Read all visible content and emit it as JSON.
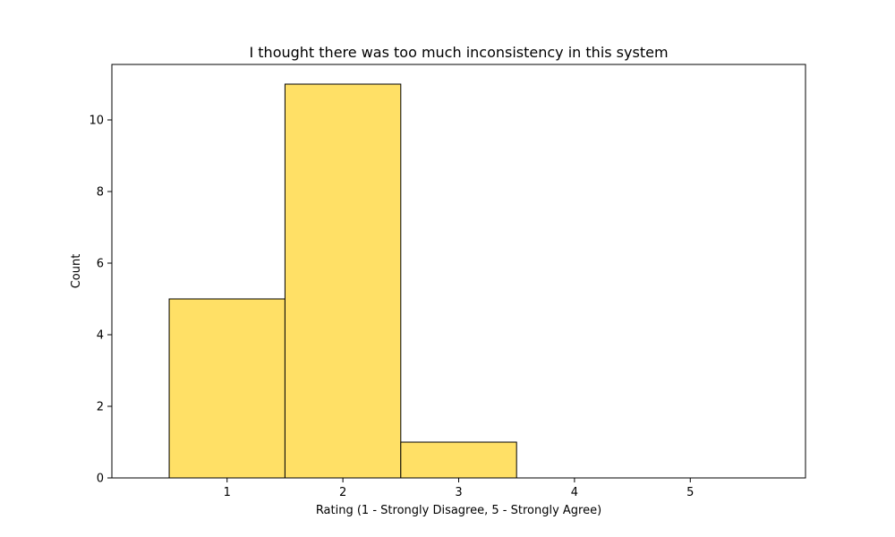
{
  "colors": {
    "bar_fill": "#ffe066",
    "bar_edge": "#000000",
    "axis": "#000000",
    "background": "#ffffff"
  },
  "chart_data": {
    "type": "bar",
    "title": "I thought there was too much inconsistency in this system",
    "xlabel": "Rating (1 - Strongly Disagree, 5 - Strongly Agree)",
    "ylabel": "Count",
    "categories": [
      "1",
      "2",
      "3",
      "4",
      "5"
    ],
    "values": [
      5,
      11,
      1,
      0,
      0
    ],
    "xticks": [
      "1",
      "2",
      "3",
      "4",
      "5"
    ],
    "yticks": [
      "0",
      "2",
      "4",
      "6",
      "8",
      "10"
    ],
    "xlim": [
      0.005,
      5.995
    ],
    "ylim": [
      0,
      11.55
    ],
    "grid": false
  }
}
